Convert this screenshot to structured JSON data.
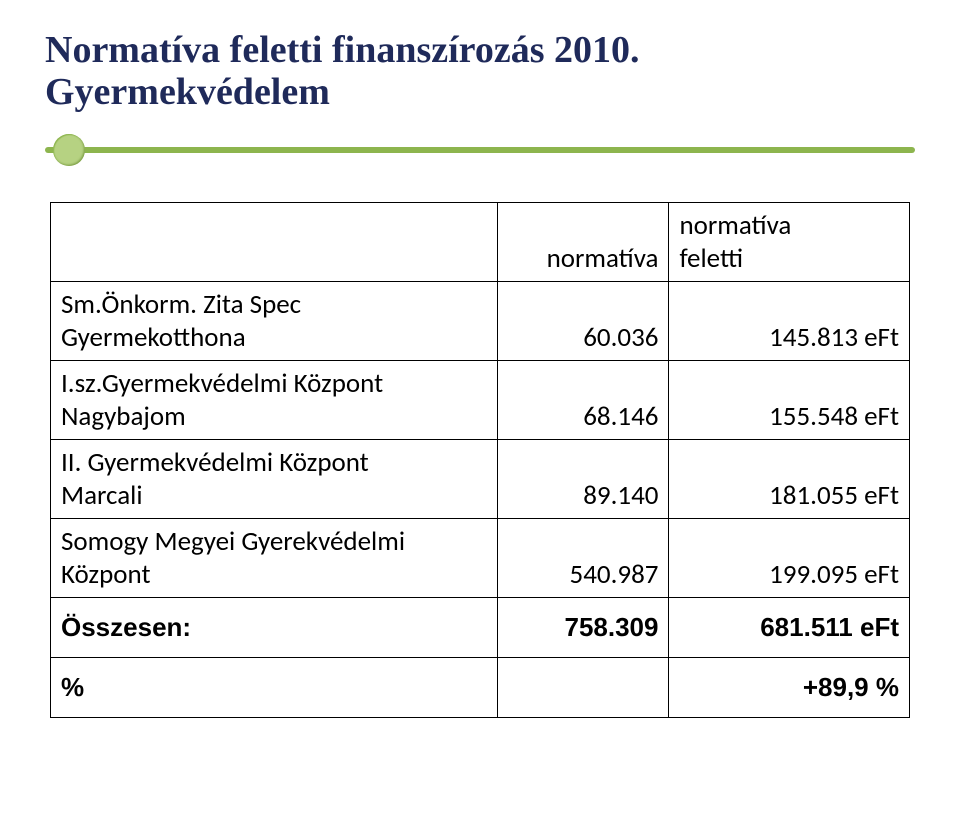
{
  "title": {
    "line1": "Normatíva feletti finanszírozás 2010.",
    "line2": "Gyermekvédelem"
  },
  "table": {
    "header": {
      "col_norm": "normatíva",
      "col_above_line1": "normatíva",
      "col_above_line2": "feletti"
    },
    "rows": [
      {
        "label_line1": "Sm.Önkorm. Zita Spec",
        "label_line2": "Gyermekotthona",
        "norm": "60.036",
        "above": "145.813 eFt"
      },
      {
        "label_line1": "I.sz.Gyermekvédelmi Központ",
        "label_line2": "Nagybajom",
        "norm": "68.146",
        "above": "155.548 eFt"
      },
      {
        "label_line1": "II. Gyermekvédelmi Központ",
        "label_line2": "Marcali",
        "norm": "89.140",
        "above": "181.055 eFt"
      },
      {
        "label_line1": "Somogy Megyei Gyerekvédelmi",
        "label_line2": "Központ",
        "norm": "540.987",
        "above": "199.095 eFt"
      }
    ],
    "total": {
      "label": "Összesen:",
      "norm": "758.309",
      "above": "681.511 eFt"
    },
    "pct": {
      "label": "%",
      "value": "+89,9 %"
    }
  },
  "colors": {
    "title_color": "#1f2a5a",
    "accent_line": "#8db54e",
    "accent_dot": "#b6d282",
    "border": "#000000",
    "background": "#ffffff",
    "text": "#000000"
  },
  "typography": {
    "title_font": "Times New Roman",
    "title_size_pt": 29,
    "body_font": "Calibri",
    "body_size_pt": 20,
    "total_font": "Arial",
    "total_size_pt": 20
  }
}
